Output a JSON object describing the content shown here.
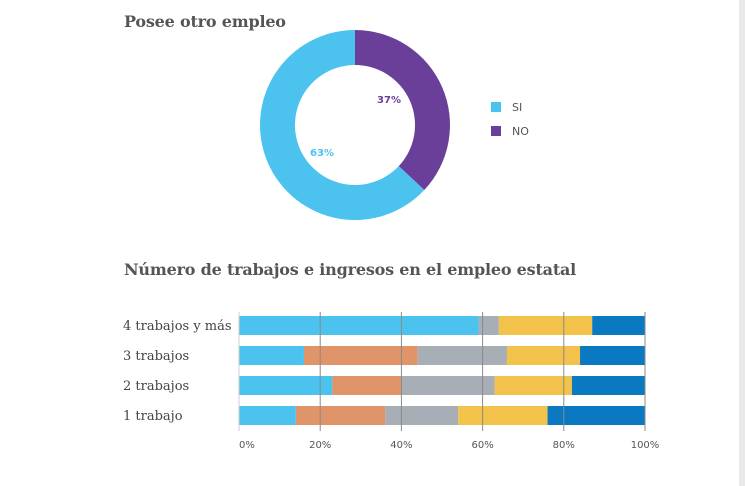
{
  "chart_data": [
    {
      "type": "pie",
      "style": "donut",
      "title": "Posee otro empleo",
      "categories": [
        "SI",
        "NO"
      ],
      "values": [
        63,
        37
      ],
      "labels": [
        "63%",
        "37%"
      ],
      "colors": [
        "#4cc3ee",
        "#6a3f9a"
      ],
      "legend_position": "right"
    },
    {
      "type": "bar",
      "orientation": "horizontal",
      "stacked": true,
      "percent": true,
      "title": "Número de trabajos e ingresos en el empleo estatal",
      "categories": [
        "4 trabajos y más",
        "3 trabajos",
        "2 trabajos",
        "1 trabajo"
      ],
      "series": [
        {
          "name": "",
          "color": "#4cc3ee",
          "values": [
            59,
            16,
            23,
            14
          ]
        },
        {
          "name": "",
          "color": "#e0946a",
          "values": [
            0,
            28,
            17,
            22
          ]
        },
        {
          "name": "",
          "color": "#a7aeb6",
          "values": [
            5,
            22,
            23,
            18
          ]
        },
        {
          "name": "",
          "color": "#f2c24b",
          "values": [
            23,
            18,
            19,
            22
          ]
        },
        {
          "name": "",
          "color": "#0a79c2",
          "values": [
            13,
            16,
            18,
            24
          ]
        }
      ],
      "xlim": [
        0,
        100
      ],
      "xticks": [
        "0%",
        "20%",
        "40%",
        "60%",
        "80%",
        "100%"
      ],
      "grid": true
    }
  ]
}
